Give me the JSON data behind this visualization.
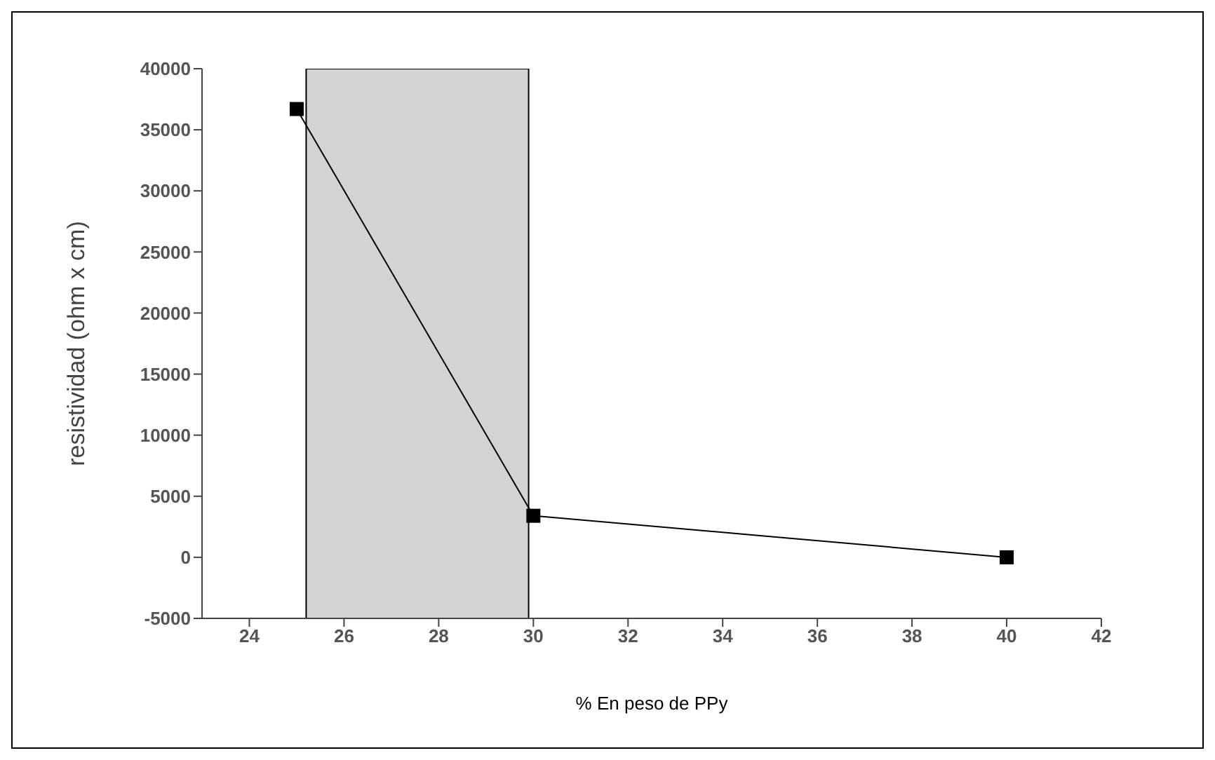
{
  "chart_data": {
    "type": "line",
    "xlabel": "% En peso de PPy",
    "ylabel": "resistividad (ohm x cm)",
    "x": [
      25,
      30,
      40
    ],
    "series": [
      {
        "color": "#000000",
        "values": [
          36700,
          3400,
          0
        ]
      }
    ],
    "xlim": [
      23,
      42
    ],
    "xticks": [
      24,
      26,
      28,
      30,
      32,
      34,
      36,
      38,
      40,
      42
    ],
    "ylim": [
      -5000,
      40000
    ],
    "yticks": [
      -5000,
      0,
      5000,
      10000,
      15000,
      20000,
      25000,
      30000,
      35000,
      40000
    ],
    "bands": [
      {
        "axis": "x",
        "from": 25.2,
        "to": 29.9,
        "color": "#d3d3d3"
      }
    ],
    "marker": "square",
    "line_style": "solid",
    "grid": false,
    "legend": false
  }
}
